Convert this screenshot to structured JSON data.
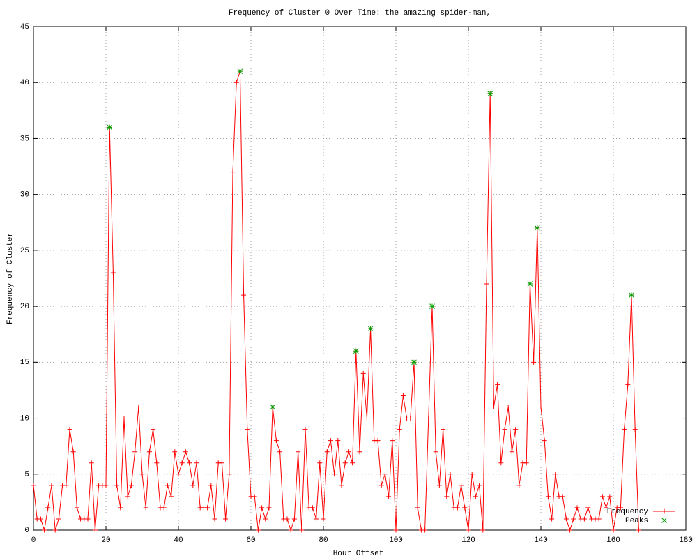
{
  "chart_data": {
    "type": "line",
    "title": "Frequency of Cluster 0 Over Time: the amazing spider-man,",
    "x_label": "Hour Offset",
    "y_label": "Frequency of Cluster",
    "xlim": [
      0,
      180
    ],
    "xticks": [
      0,
      20,
      40,
      60,
      80,
      100,
      120,
      140,
      160,
      180
    ],
    "ylim": [
      0,
      45
    ],
    "yticks": [
      0,
      5,
      10,
      15,
      20,
      25,
      30,
      35,
      40,
      45
    ],
    "grid": true,
    "legend": "bottom-right",
    "series": [
      {
        "name": "Frequency",
        "color": "#ff0000",
        "marker": "plus",
        "line": true,
        "x": [
          0,
          1,
          2,
          3,
          4,
          5,
          6,
          7,
          8,
          9,
          10,
          11,
          12,
          13,
          14,
          15,
          16,
          17,
          18,
          19,
          20,
          21,
          22,
          23,
          24,
          25,
          26,
          27,
          28,
          29,
          30,
          31,
          32,
          33,
          34,
          35,
          36,
          37,
          38,
          39,
          40,
          41,
          42,
          43,
          44,
          45,
          46,
          47,
          48,
          49,
          50,
          51,
          52,
          53,
          54,
          55,
          56,
          57,
          58,
          59,
          60,
          61,
          62,
          63,
          64,
          65,
          66,
          67,
          68,
          69,
          70,
          71,
          72,
          73,
          74,
          75,
          76,
          77,
          78,
          79,
          80,
          81,
          82,
          83,
          84,
          85,
          86,
          87,
          88,
          89,
          90,
          91,
          92,
          93,
          94,
          95,
          96,
          97,
          98,
          99,
          100,
          101,
          102,
          103,
          104,
          105,
          106,
          107,
          108,
          109,
          110,
          111,
          112,
          113,
          114,
          115,
          116,
          117,
          118,
          119,
          120,
          121,
          122,
          123,
          124,
          125,
          126,
          127,
          128,
          129,
          130,
          131,
          132,
          133,
          134,
          135,
          136,
          137,
          138,
          139,
          140,
          141,
          142,
          143,
          144,
          145,
          146,
          147,
          148,
          149,
          150,
          151,
          152,
          153,
          154,
          155,
          156,
          157,
          158,
          159,
          160,
          161,
          162,
          163,
          164,
          165,
          166,
          167
        ],
        "values": [
          4,
          1,
          1,
          0,
          2,
          4,
          0,
          1,
          4,
          4,
          9,
          7,
          2,
          1,
          1,
          1,
          6,
          0,
          4,
          4,
          4,
          36,
          23,
          4,
          2,
          10,
          3,
          4,
          7,
          11,
          5,
          2,
          7,
          9,
          6,
          2,
          2,
          4,
          3,
          7,
          5,
          6,
          7,
          6,
          4,
          6,
          2,
          2,
          2,
          4,
          1,
          6,
          6,
          1,
          5,
          32,
          40,
          41,
          21,
          9,
          3,
          3,
          0,
          2,
          1,
          2,
          11,
          8,
          7,
          1,
          1,
          0,
          1,
          7,
          0,
          9,
          2,
          2,
          1,
          6,
          1,
          7,
          8,
          5,
          8,
          4,
          6,
          7,
          6,
          16,
          7,
          14,
          10,
          18,
          8,
          8,
          4,
          5,
          3,
          8,
          0,
          9,
          12,
          10,
          10,
          15,
          2,
          0,
          0,
          10,
          20,
          7,
          4,
          9,
          3,
          5,
          2,
          2,
          4,
          2,
          0,
          5,
          3,
          4,
          0,
          22,
          39,
          11,
          13,
          6,
          9,
          11,
          7,
          9,
          4,
          6,
          6,
          22,
          15,
          27,
          11,
          8,
          3,
          1,
          5,
          3,
          3,
          1,
          0,
          1,
          2,
          1,
          1,
          2,
          1,
          1,
          1,
          3,
          2,
          3,
          0,
          2,
          2,
          9,
          13,
          21,
          9,
          0
        ]
      },
      {
        "name": "Peaks",
        "color": "#00a000",
        "marker": "cross",
        "line": false,
        "x": [
          21,
          57,
          66,
          89,
          93,
          105,
          110,
          126,
          137,
          139,
          165
        ],
        "values": [
          36,
          41,
          11,
          16,
          18,
          15,
          20,
          39,
          22,
          27,
          21
        ]
      }
    ]
  }
}
